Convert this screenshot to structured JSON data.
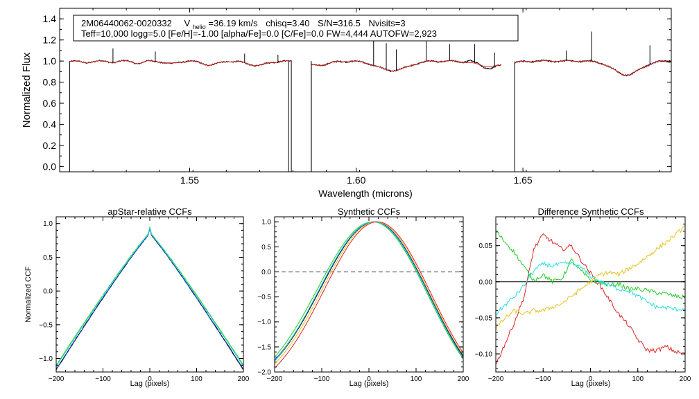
{
  "spectrum": {
    "header_id": "2M06440062-0020332",
    "vhelio_label": "V",
    "vhelio_sub": "helio",
    "vhelio_value": "=36.19 km/s",
    "chisq": "chisq=3.40",
    "snr": "S/N=316.5",
    "nvisits": "Nvisits=3",
    "params_line": "Teff=10,000 logg=5.0 [Fe/H]=-1.00 [alpha/Fe]=0.0 [C/Fe]=0.0 FW=4,444 AUTOFW=2,923"
  },
  "colors": {
    "observed": "#000000",
    "model": "#dd2222",
    "ccf_series": [
      "#000000",
      "#1a2fb0",
      "#22cc22",
      "#e8c020",
      "#22dddd",
      "#dd2222"
    ],
    "dashed": "#666666"
  },
  "chart_data": [
    {
      "type": "line",
      "name": "spectrum",
      "xlabel": "Wavelength (microns)",
      "ylabel": "Normalized Flux",
      "xlim": [
        1.511,
        1.6945
      ],
      "ylim": [
        -0.05,
        1.5
      ],
      "xticks": [
        1.55,
        1.6,
        1.65
      ],
      "xtick_labels": [
        "1.55",
        "1.60",
        "1.65"
      ],
      "yticks": [
        0.0,
        0.2,
        0.4,
        0.6,
        0.8,
        1.0,
        1.2,
        1.4
      ],
      "ytick_labels": [
        "0.0",
        "0.2",
        "0.4",
        "0.6",
        "0.8",
        "1.0",
        "1.2",
        "1.4"
      ],
      "chip_ranges": [
        [
          1.514,
          1.5805
        ],
        [
          1.5865,
          1.6435
        ],
        [
          1.6475,
          1.6945
        ]
      ],
      "absorption_lines": [
        {
          "center": 1.5185,
          "depth": 0.015,
          "width": 0.0015
        },
        {
          "center": 1.5264,
          "depth": 0.01,
          "width": 0.0015
        },
        {
          "center": 1.5345,
          "depth": 0.02,
          "width": 0.0015
        },
        {
          "center": 1.5443,
          "depth": 0.025,
          "width": 0.002
        },
        {
          "center": 1.5561,
          "depth": 0.035,
          "width": 0.0025
        },
        {
          "center": 1.5701,
          "depth": 0.04,
          "width": 0.003
        },
        {
          "center": 1.588,
          "depth": 0.04,
          "width": 0.0035
        },
        {
          "center": 1.6109,
          "depth": 0.09,
          "width": 0.0045
        },
        {
          "center": 1.6407,
          "depth": 0.05,
          "width": 0.0045
        },
        {
          "center": 1.6811,
          "depth": 0.13,
          "width": 0.004
        }
      ],
      "emission_spikes": [
        {
          "x": 1.527,
          "height": 1.12
        },
        {
          "x": 1.5397,
          "height": 1.09
        },
        {
          "x": 1.5665,
          "height": 1.07
        },
        {
          "x": 1.5765,
          "height": 1.06
        },
        {
          "x": 1.6052,
          "height": 1.22
        },
        {
          "x": 1.609,
          "height": 1.17
        },
        {
          "x": 1.612,
          "height": 1.11
        },
        {
          "x": 1.621,
          "height": 1.22
        },
        {
          "x": 1.628,
          "height": 1.16
        },
        {
          "x": 1.6355,
          "height": 1.16
        },
        {
          "x": 1.6415,
          "height": 1.08
        },
        {
          "x": 1.663,
          "height": 1.1
        },
        {
          "x": 1.6706,
          "height": 1.28
        },
        {
          "x": 1.6881,
          "height": 1.15
        }
      ]
    },
    {
      "type": "line",
      "name": "apStar-relative CCFs",
      "title": "apStar-relative CCFs",
      "xlabel": "Lag (pixels)",
      "ylabel": "Normalized CCF",
      "xlim": [
        -200,
        200
      ],
      "ylim": [
        -1.2,
        1.1
      ],
      "xticks": [
        -200,
        -100,
        0,
        100,
        200
      ],
      "xtick_labels": [
        "−200",
        "−100",
        "0",
        "100",
        "200"
      ],
      "yticks": [
        -1.0,
        -0.5,
        0.0,
        0.5,
        1.0
      ],
      "ytick_labels": [
        "−1.0",
        "−0.5",
        "0.0",
        "0.5",
        "1.0"
      ],
      "series": [
        {
          "name": "black",
          "color_index": 0,
          "peak": 0.85,
          "end": -1.16
        },
        {
          "name": "blue",
          "color_index": 1,
          "peak": 0.85,
          "end": -1.17
        },
        {
          "name": "green",
          "color_index": 2,
          "peak": 0.87,
          "end": -1.1
        },
        {
          "name": "cyan",
          "color_index": 4,
          "peak": 0.86,
          "end": -1.12
        }
      ]
    },
    {
      "type": "line",
      "name": "Synthetic CCFs",
      "title": "Synthetic CCFs",
      "xlabel": "Lag (pixels)",
      "xlim": [
        -200,
        200
      ],
      "ylim": [
        -2.0,
        1.1
      ],
      "xticks": [
        -200,
        -100,
        0,
        100,
        200
      ],
      "xtick_labels": [
        "−200",
        "−100",
        "0",
        "100",
        "200"
      ],
      "yticks": [
        -2.0,
        -1.5,
        -1.0,
        -0.5,
        0.0,
        0.5,
        1.0
      ],
      "ytick_labels": [
        "−2.0",
        "−1.5",
        "−1.0",
        "−0.5",
        "0.0",
        "0.5",
        "1.0"
      ],
      "zero_line": 0.0,
      "series": [
        {
          "name": "black",
          "color_index": 0,
          "center": 12,
          "width": 115,
          "end_left": -1.78,
          "end_right": -1.68
        },
        {
          "name": "blue",
          "color_index": 1,
          "center": 12,
          "width": 116,
          "end_left": -1.76,
          "end_right": -1.7
        },
        {
          "name": "green",
          "color_index": 2,
          "center": 8,
          "width": 117,
          "end_left": -1.7,
          "end_right": -1.74
        },
        {
          "name": "yellow",
          "color_index": 3,
          "center": 15,
          "width": 114,
          "end_left": -1.84,
          "end_right": -1.66
        },
        {
          "name": "cyan",
          "color_index": 4,
          "center": 10,
          "width": 116,
          "end_left": -1.78,
          "end_right": -1.72
        },
        {
          "name": "red",
          "color_index": 5,
          "center": 18,
          "width": 113,
          "end_left": -1.92,
          "end_right": -1.62
        }
      ]
    },
    {
      "type": "line",
      "name": "Difference Synthetic CCFs",
      "title": "Difference Synthetic CCFs",
      "xlabel": "Lag (pixels)",
      "xlim": [
        -200,
        200
      ],
      "ylim": [
        -0.125,
        0.09
      ],
      "xticks": [
        -200,
        -100,
        0,
        100,
        200
      ],
      "xtick_labels": [
        "−200",
        "−100",
        "0",
        "100",
        "200"
      ],
      "yticks": [
        -0.1,
        -0.05,
        0.0,
        0.05
      ],
      "ytick_labels": [
        "−0.10",
        "−0.05",
        "0.00",
        "0.05"
      ],
      "zero_line": 0.0,
      "series": [
        {
          "name": "red",
          "color_index": 5,
          "x": [
            -200,
            -180,
            -160,
            -140,
            -120,
            -100,
            -80,
            -60,
            -40,
            -20,
            0,
            20,
            40,
            60,
            80,
            100,
            120,
            140,
            160,
            180,
            200
          ],
          "y": [
            -0.115,
            -0.085,
            -0.055,
            -0.02,
            0.045,
            0.065,
            0.055,
            0.045,
            0.05,
            0.03,
            0.012,
            -0.005,
            -0.025,
            -0.045,
            -0.06,
            -0.08,
            -0.095,
            -0.095,
            -0.09,
            -0.097,
            -0.1
          ]
        },
        {
          "name": "green",
          "color_index": 2,
          "x": [
            -200,
            -180,
            -160,
            -140,
            -120,
            -100,
            -80,
            -60,
            -40,
            -20,
            0,
            20,
            40,
            60,
            80,
            100,
            120,
            140,
            160,
            180,
            200
          ],
          "y": [
            0.07,
            0.055,
            0.04,
            0.02,
            0.002,
            0.01,
            0.0,
            0.005,
            0.03,
            0.015,
            0.002,
            0.0,
            -0.005,
            -0.003,
            -0.01,
            -0.01,
            -0.012,
            -0.015,
            -0.017,
            -0.02,
            -0.022
          ]
        },
        {
          "name": "cyan",
          "color_index": 4,
          "x": [
            -200,
            -180,
            -160,
            -140,
            -120,
            -100,
            -80,
            -60,
            -40,
            -20,
            0,
            20,
            40,
            60,
            80,
            100,
            120,
            140,
            160,
            180,
            200
          ],
          "y": [
            -0.045,
            -0.032,
            -0.02,
            -0.005,
            0.015,
            0.025,
            0.022,
            0.025,
            0.025,
            0.02,
            0.008,
            0.0,
            -0.005,
            -0.01,
            -0.012,
            -0.02,
            -0.028,
            -0.035,
            -0.036,
            -0.038,
            -0.038
          ]
        },
        {
          "name": "yellow",
          "color_index": 3,
          "x": [
            -200,
            -180,
            -160,
            -140,
            -120,
            -100,
            -80,
            -60,
            -40,
            -20,
            0,
            20,
            40,
            60,
            80,
            100,
            120,
            140,
            160,
            180,
            200
          ],
          "y": [
            -0.065,
            -0.05,
            -0.04,
            -0.045,
            -0.04,
            -0.04,
            -0.035,
            -0.03,
            -0.02,
            -0.01,
            0.0,
            0.01,
            0.013,
            0.01,
            0.018,
            0.025,
            0.035,
            0.045,
            0.055,
            0.065,
            0.078
          ]
        }
      ]
    }
  ]
}
